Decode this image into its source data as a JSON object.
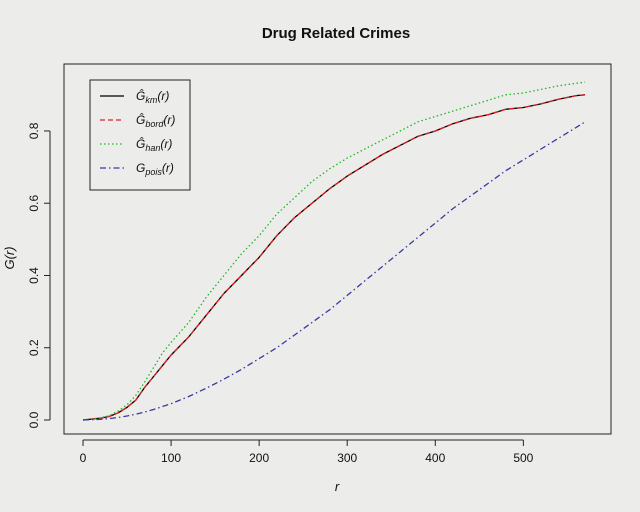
{
  "chart_data": {
    "type": "line",
    "title": "Drug Related Crimes",
    "xlabel": "r",
    "ylabel": "G(r)",
    "xlim": [
      0,
      570
    ],
    "ylim": [
      0,
      0.93
    ],
    "xticks": [
      "0",
      "100",
      "200",
      "300",
      "400",
      "500"
    ],
    "yticks": [
      "0.0",
      "0.2",
      "0.4",
      "0.6",
      "0.8"
    ],
    "grid": false,
    "legend": "top-left",
    "x": [
      0,
      20,
      30,
      40,
      50,
      60,
      70,
      80,
      90,
      100,
      120,
      140,
      160,
      180,
      200,
      220,
      240,
      260,
      280,
      300,
      320,
      340,
      360,
      380,
      400,
      420,
      440,
      460,
      480,
      500,
      520,
      540,
      560,
      570
    ],
    "series": [
      {
        "name": "km",
        "color": "#000000",
        "dash": "solid",
        "values": [
          0.0,
          0.005,
          0.01,
          0.02,
          0.035,
          0.055,
          0.09,
          0.12,
          0.15,
          0.18,
          0.23,
          0.29,
          0.35,
          0.4,
          0.45,
          0.51,
          0.56,
          0.6,
          0.64,
          0.675,
          0.705,
          0.735,
          0.76,
          0.785,
          0.8,
          0.82,
          0.835,
          0.845,
          0.86,
          0.865,
          0.875,
          0.888,
          0.898,
          0.9
        ]
      },
      {
        "name": "bord",
        "color": "#e02020",
        "dash": "dashed",
        "values": [
          0.0,
          0.005,
          0.01,
          0.02,
          0.035,
          0.055,
          0.09,
          0.12,
          0.15,
          0.18,
          0.23,
          0.29,
          0.35,
          0.4,
          0.45,
          0.51,
          0.56,
          0.6,
          0.64,
          0.675,
          0.705,
          0.735,
          0.76,
          0.785,
          0.8,
          0.82,
          0.835,
          0.845,
          0.86,
          0.865,
          0.875,
          0.888,
          0.898,
          0.9
        ]
      },
      {
        "name": "han",
        "color": "#22b522",
        "dash": "dotted",
        "values": [
          0.0,
          0.006,
          0.012,
          0.025,
          0.042,
          0.068,
          0.105,
          0.145,
          0.185,
          0.215,
          0.27,
          0.34,
          0.4,
          0.46,
          0.51,
          0.57,
          0.615,
          0.66,
          0.695,
          0.725,
          0.75,
          0.775,
          0.8,
          0.825,
          0.84,
          0.855,
          0.87,
          0.885,
          0.9,
          0.905,
          0.915,
          0.925,
          0.932,
          0.935
        ]
      },
      {
        "name": "pois",
        "color": "#3a3aa0",
        "dash": "dashdot",
        "values": [
          0.0,
          0.002,
          0.004,
          0.007,
          0.011,
          0.016,
          0.022,
          0.029,
          0.037,
          0.045,
          0.065,
          0.088,
          0.113,
          0.14,
          0.17,
          0.2,
          0.235,
          0.27,
          0.305,
          0.345,
          0.385,
          0.425,
          0.465,
          0.505,
          0.545,
          0.585,
          0.62,
          0.655,
          0.69,
          0.72,
          0.75,
          0.78,
          0.81,
          0.825
        ]
      }
    ],
    "legend_entries": [
      {
        "base": "Ĝ",
        "sub": "km",
        "suffix": "(r)"
      },
      {
        "base": "Ĝ",
        "sub": "bord",
        "suffix": "(r)"
      },
      {
        "base": "Ĝ",
        "sub": "han",
        "suffix": "(r)"
      },
      {
        "base": "G",
        "sub": "pois",
        "suffix": "(r)"
      }
    ]
  }
}
